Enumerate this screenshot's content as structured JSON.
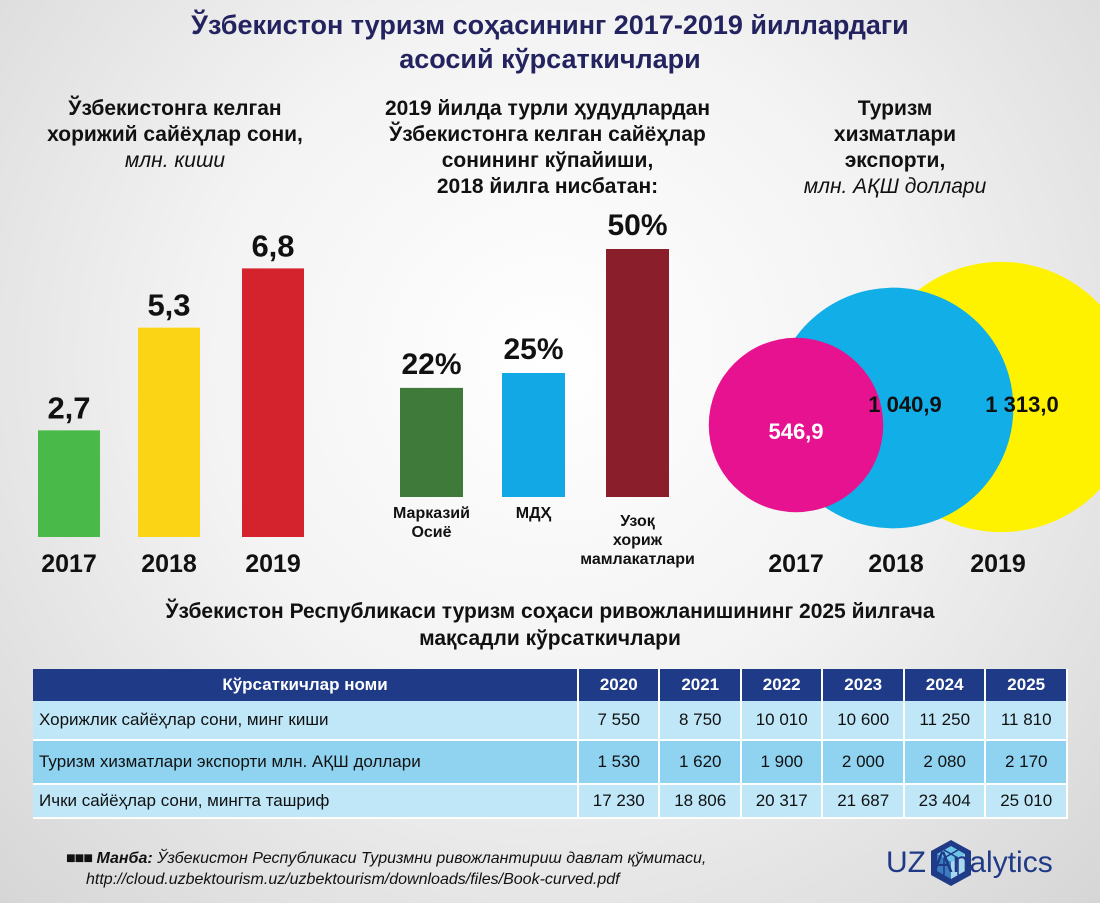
{
  "title": {
    "line1": "Ўзбекистон туризм соҳасининг 2017-2019 йиллардаги",
    "line2": "асосий кўрсаткичлари"
  },
  "colors": {
    "title": "#23235f",
    "header_bg": "#1f3a86",
    "row_light": "#bfe7f8",
    "row_mid": "#8fd3f0"
  },
  "panel1": {
    "line1": "Ўзбекистонга келган",
    "line2": "хорижий сайёҳлар сони,",
    "unit": "млн. киши"
  },
  "panel2": {
    "line1": "2019 йилда турли ҳудудлардан",
    "line2": "Ўзбекистонга келган сайёҳлар",
    "line3": "сонининг кўпайиши,",
    "line4": "2018 йилга нисбатан:"
  },
  "panel3": {
    "line1": "Туризм",
    "line2": "хизматлари",
    "line3": "экспорти,",
    "unit": "млн. АҚШ доллари"
  },
  "chart_data": [
    {
      "type": "bar",
      "categories": [
        "2017",
        "2018",
        "2019"
      ],
      "values": [
        2.7,
        5.3,
        6.8
      ],
      "labels": [
        "2,7",
        "5,3",
        "6,8"
      ],
      "colors": [
        "#49b94a",
        "#fcd416",
        "#d4232c"
      ],
      "title": "Ўзбекистонга келган хорижий сайёҳлар сони, млн. киши"
    },
    {
      "type": "bar",
      "categories": [
        "Марказий Осиё",
        "МДҲ",
        "Узоқ хориж мамлакатлари"
      ],
      "category_lines": [
        [
          "Марказий",
          "Осиё"
        ],
        [
          "МДҲ"
        ],
        [
          "Узоқ",
          "хориж",
          "мамлакатлари"
        ]
      ],
      "values": [
        22,
        25,
        50
      ],
      "labels": [
        "22%",
        "25%",
        "50%"
      ],
      "colors": [
        "#3f7a3b",
        "#12a8e6",
        "#8b1e2b"
      ],
      "title": "2019 йилда турли ҳудудлардан Ўзбекистонга келган сайёҳлар сонининг кўпайиши, 2018 йилга нисбатан:"
    },
    {
      "type": "bubble",
      "categories": [
        "2017",
        "2018",
        "2019"
      ],
      "values": [
        546.9,
        1040.9,
        1313.0
      ],
      "labels": [
        "546,9",
        "1 040,9",
        "1 313,0"
      ],
      "colors": [
        "#e6128f",
        "#12aee8",
        "#fff200"
      ],
      "title": "Туризм хизматлари экспорти, млн. АҚШ доллари"
    }
  ],
  "targets_title": {
    "line1": "Ўзбекистон Республикаси туризм соҳаси ривожланишининг 2025 йилгача",
    "line2": "мақсадли кўрсаткичлари"
  },
  "table": {
    "columns": [
      "Кўрсаткичлар номи",
      "2020",
      "2021",
      "2022",
      "2023",
      "2024",
      "2025"
    ],
    "rows": [
      [
        "Хорижлик сайёҳлар сони, минг киши",
        "7 550",
        "8 750",
        "10 010",
        "10 600",
        "11 250",
        "11 810"
      ],
      [
        "Туризм хизматлари экспорти млн. АҚШ доллари",
        "1 530",
        "1 620",
        "1 900",
        "2 000",
        "2 080",
        "2 170"
      ],
      [
        "Ички сайёҳлар сони, мингта ташриф",
        "17 230",
        "18 806",
        "20 317",
        "21 687",
        "23 404",
        "25 010"
      ]
    ]
  },
  "source": {
    "marker": "■■■",
    "label": "Манба:",
    "text": "Ўзбекистон Республикаси Туризмни ривожлантириш давлат қўмитаси,",
    "url": "http://cloud.uzbektourism.uz/uzbektourism/downloads/files/Book-curved.pdf"
  },
  "logo": {
    "text": "UZ Analytics",
    "icon": "hexagon-cube-logo-icon"
  }
}
